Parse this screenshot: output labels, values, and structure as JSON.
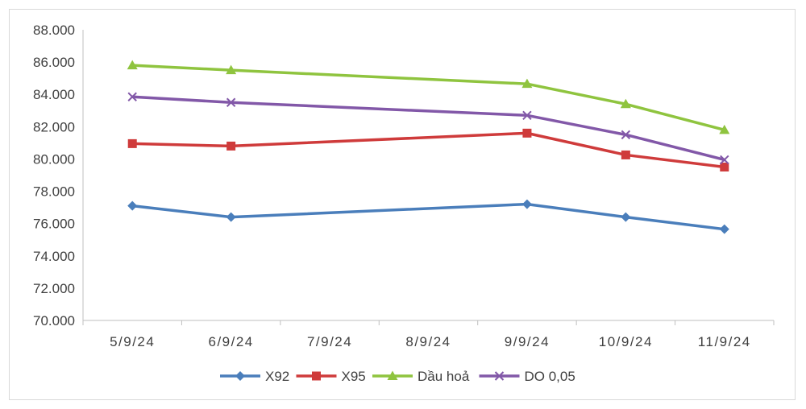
{
  "chart_data": {
    "type": "line",
    "title": "",
    "xlabel": "",
    "ylabel": "",
    "categories": [
      "5/9/24",
      "6/9/24",
      "7/9/24",
      "8/9/24",
      "9/9/24",
      "10/9/24",
      "11/9/24"
    ],
    "y_ticks": [
      "70.000",
      "72.000",
      "74.000",
      "76.000",
      "78.000",
      "80.000",
      "82.000",
      "84.000",
      "86.000",
      "88.000"
    ],
    "ylim": [
      70000,
      88000
    ],
    "grid": false,
    "legend_position": "bottom",
    "series": [
      {
        "name": "X92",
        "color": "#4a7ebb",
        "marker": "diamond",
        "values": [
          77100,
          76400,
          null,
          null,
          77200,
          76400,
          75650
        ]
      },
      {
        "name": "X95",
        "color": "#cf3b3b",
        "marker": "square",
        "values": [
          80950,
          80800,
          null,
          null,
          81600,
          80250,
          79500
        ]
      },
      {
        "name": "Dầu hoả",
        "color": "#8fc43f",
        "marker": "triangle",
        "values": [
          85800,
          85500,
          null,
          null,
          84650,
          83400,
          81800
        ]
      },
      {
        "name": "DO 0,05",
        "color": "#8258a8",
        "marker": "x",
        "values": [
          83850,
          83500,
          null,
          null,
          82700,
          81500,
          79950
        ]
      }
    ]
  }
}
